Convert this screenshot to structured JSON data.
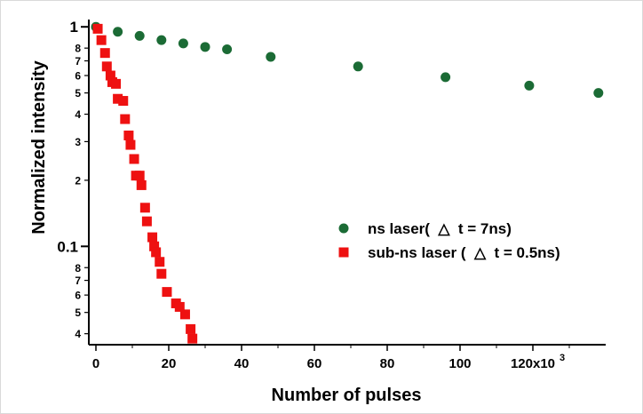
{
  "chart_data": {
    "type": "scatter",
    "title": "",
    "xlabel": "Number of pulses",
    "ylabel": "Normalized intensity",
    "xlim": [
      0,
      140000
    ],
    "ylim": [
      0.037,
      1.04
    ],
    "yscale": "log",
    "grid": false,
    "legend_position": "center-right",
    "x_ticks": [
      {
        "value": 0,
        "label": "0"
      },
      {
        "value": 20000,
        "label": "20"
      },
      {
        "value": 40000,
        "label": "40"
      },
      {
        "value": 60000,
        "label": "60"
      },
      {
        "value": 80000,
        "label": "80"
      },
      {
        "value": 100000,
        "label": "100"
      },
      {
        "value": 120000,
        "label": "120x10"
      }
    ],
    "x_tick_exponent": "3",
    "y_major_ticks": [
      {
        "value": 1,
        "label": "1"
      },
      {
        "value": 0.1,
        "label": "0.1"
      }
    ],
    "y_minor_ticks": [
      {
        "value": 0.8,
        "label": "8"
      },
      {
        "value": 0.7,
        "label": "7"
      },
      {
        "value": 0.6,
        "label": "6"
      },
      {
        "value": 0.5,
        "label": "5"
      },
      {
        "value": 0.4,
        "label": "4"
      },
      {
        "value": 0.3,
        "label": "3"
      },
      {
        "value": 0.2,
        "label": "2"
      },
      {
        "value": 0.08,
        "label": "8"
      },
      {
        "value": 0.07,
        "label": "7"
      },
      {
        "value": 0.06,
        "label": "6"
      },
      {
        "value": 0.05,
        "label": "5"
      },
      {
        "value": 0.04,
        "label": "4"
      }
    ],
    "series": [
      {
        "name": "ns laser(  △  t = 7ns)",
        "marker": "circle",
        "color": "#1b6b35",
        "x": [
          0,
          6000,
          12000,
          18000,
          24000,
          30000,
          36000,
          48000,
          72000,
          96000,
          119000,
          138000
        ],
        "y": [
          1.0,
          0.95,
          0.91,
          0.87,
          0.84,
          0.81,
          0.79,
          0.73,
          0.66,
          0.59,
          0.54,
          0.5
        ]
      },
      {
        "name": "sub-ns laser (  △  t = 0.5ns)",
        "marker": "square",
        "color": "#ee1111",
        "x": [
          500,
          1500,
          2500,
          3000,
          4000,
          4500,
          5500,
          6000,
          7500,
          8000,
          9000,
          9500,
          10500,
          11000,
          12000,
          12500,
          13500,
          14000,
          15500,
          16000,
          16500,
          17500,
          18000,
          19500,
          22000,
          23000,
          24500,
          26000,
          26500
        ],
        "y": [
          0.98,
          0.87,
          0.76,
          0.66,
          0.6,
          0.56,
          0.55,
          0.47,
          0.46,
          0.38,
          0.32,
          0.29,
          0.25,
          0.21,
          0.21,
          0.19,
          0.15,
          0.13,
          0.11,
          0.1,
          0.094,
          0.085,
          0.075,
          0.062,
          0.055,
          0.053,
          0.049,
          0.042,
          0.038
        ]
      }
    ]
  }
}
